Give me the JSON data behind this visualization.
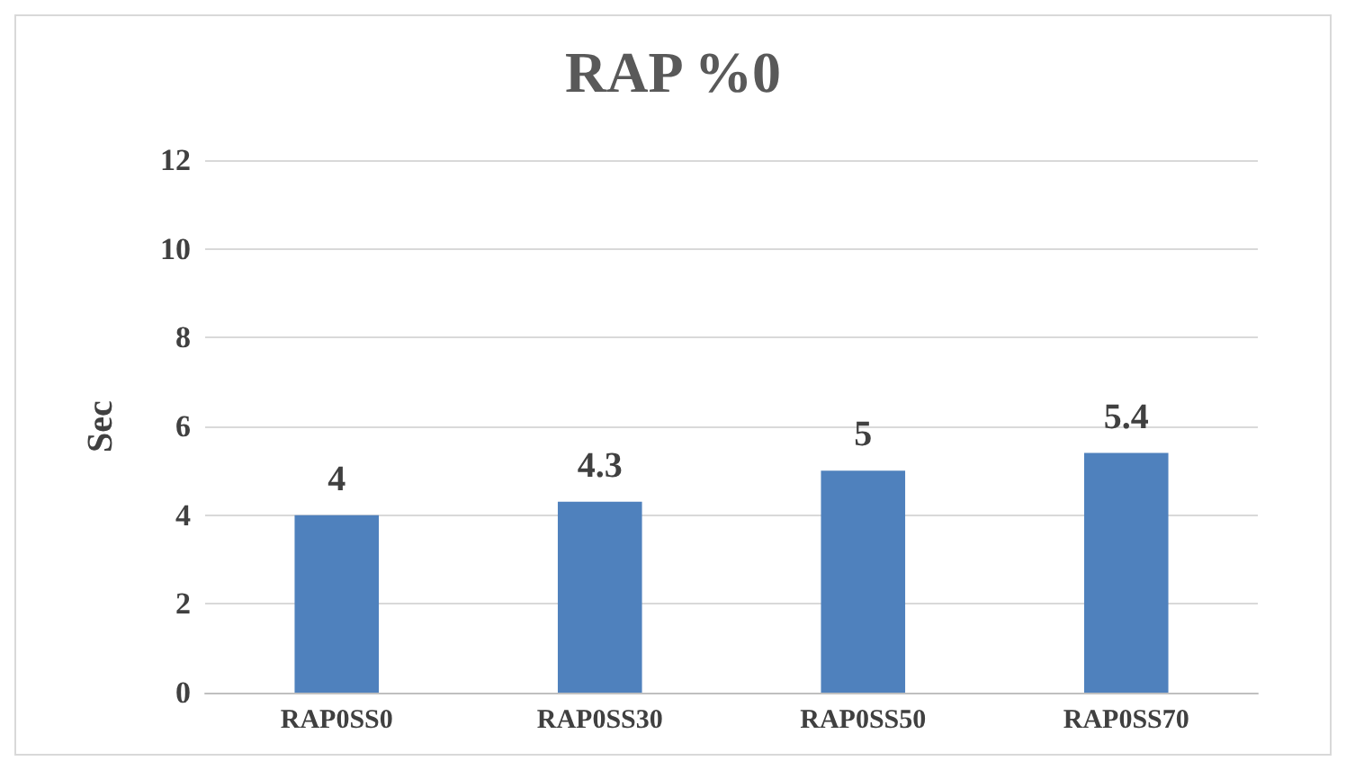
{
  "chart_data": {
    "type": "bar",
    "title": "RAP %0",
    "ylabel": "Sec",
    "categories": [
      "RAP0SS0",
      "RAP0SS30",
      "RAP0SS50",
      "RAP0SS70"
    ],
    "values": [
      4,
      4.3,
      5,
      5.4
    ],
    "color": "#4f81bd",
    "ylim": [
      0,
      12
    ],
    "yticks": [
      0,
      2,
      4,
      6,
      8,
      10,
      12
    ],
    "grid": "y",
    "data_labels": true
  }
}
